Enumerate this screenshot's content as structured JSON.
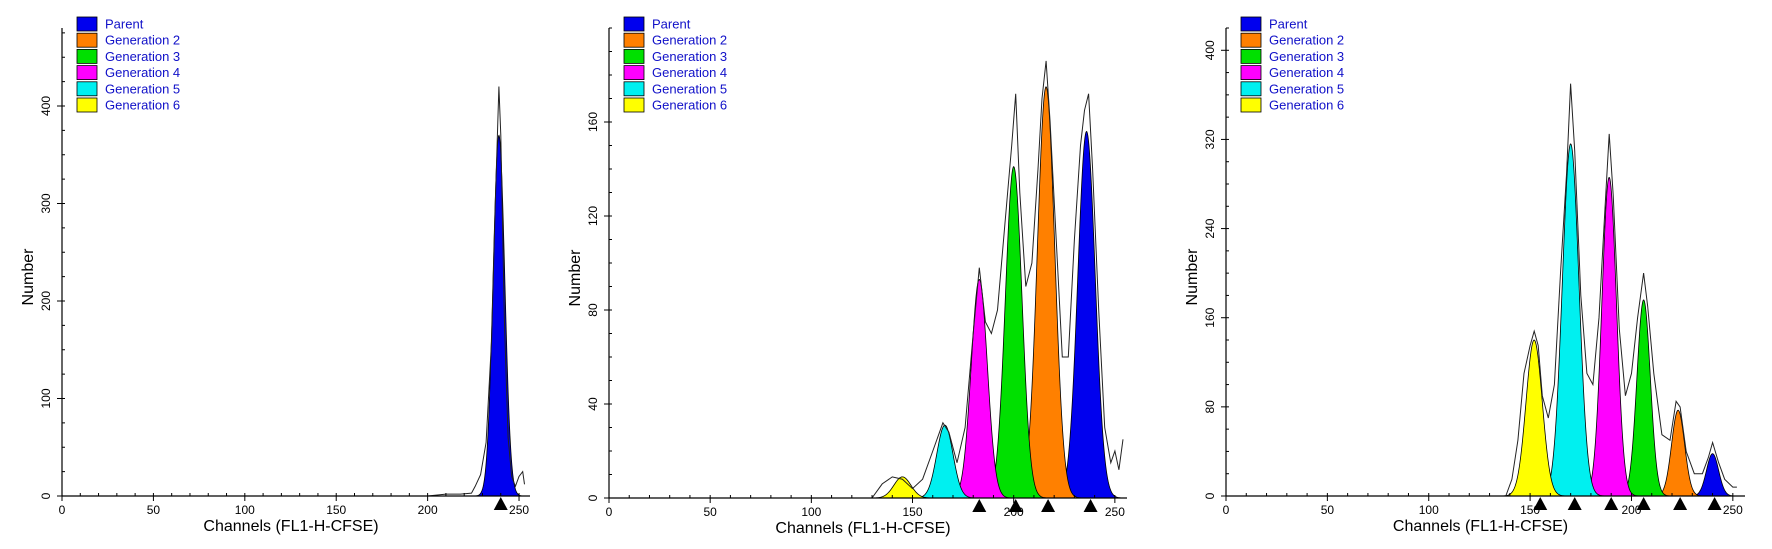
{
  "chart_data": [
    {
      "type": "area",
      "xlabel": "Channels (FL1-H-CFSE)",
      "ylabel": "Number",
      "xlim": [
        0,
        256
      ],
      "ylim": [
        0,
        480
      ],
      "xticks": [
        0,
        50,
        100,
        150,
        200,
        250
      ],
      "yticks": [
        0,
        100,
        200,
        300,
        400
      ],
      "legend": [
        "Parent",
        "Generation 2",
        "Generation 3",
        "Generation 4",
        "Generation 5",
        "Generation 6"
      ],
      "legend_position": "top-left",
      "series": [
        {
          "name": "Parent",
          "color": "#0000ee",
          "peak_x": 239,
          "peak_y": 370,
          "sigma": 3.2
        }
      ],
      "markers": [
        240
      ],
      "raw_trace": [
        [
          200,
          0
        ],
        [
          210,
          2
        ],
        [
          218,
          2
        ],
        [
          224,
          3
        ],
        [
          226,
          10
        ],
        [
          229,
          22
        ],
        [
          232,
          55
        ],
        [
          235,
          160
        ],
        [
          237,
          300
        ],
        [
          239,
          420
        ],
        [
          240,
          370
        ],
        [
          242,
          180
        ],
        [
          244,
          60
        ],
        [
          246,
          20
        ],
        [
          248,
          10
        ],
        [
          250,
          20
        ],
        [
          252,
          25
        ],
        [
          253,
          12
        ]
      ]
    },
    {
      "type": "area",
      "xlabel": "Channels (FL1-H-CFSE)",
      "ylabel": "Number",
      "xlim": [
        0,
        256
      ],
      "ylim": [
        0,
        200
      ],
      "xticks": [
        0,
        50,
        100,
        150,
        200,
        250
      ],
      "yticks": [
        0,
        40,
        80,
        120,
        160
      ],
      "legend": [
        "Parent",
        "Generation 2",
        "Generation 3",
        "Generation 4",
        "Generation 5",
        "Generation 6"
      ],
      "legend_position": "top-left",
      "series": [
        {
          "name": "Parent",
          "color": "#0000ee",
          "peak_x": 236,
          "peak_y": 156,
          "sigma": 4.3
        },
        {
          "name": "Generation 2",
          "color": "#ff8000",
          "peak_x": 216,
          "peak_y": 175,
          "sigma": 4.3
        },
        {
          "name": "Generation 3",
          "color": "#00e000",
          "peak_x": 200,
          "peak_y": 141,
          "sigma": 4.1
        },
        {
          "name": "Generation 4",
          "color": "#ff00ff",
          "peak_x": 183,
          "peak_y": 93,
          "sigma": 4.0
        },
        {
          "name": "Generation 5",
          "color": "#00f0f0",
          "peak_x": 166,
          "peak_y": 31,
          "sigma": 4.0
        },
        {
          "name": "Generation 6",
          "color": "#ffff00",
          "peak_x": 145,
          "peak_y": 9,
          "sigma": 4.2
        }
      ],
      "markers": [
        183,
        201,
        217,
        238
      ],
      "raw_trace": [
        [
          130,
          0
        ],
        [
          135,
          6
        ],
        [
          140,
          9
        ],
        [
          145,
          8
        ],
        [
          150,
          4
        ],
        [
          155,
          8
        ],
        [
          160,
          20
        ],
        [
          165,
          32
        ],
        [
          168,
          28
        ],
        [
          172,
          15
        ],
        [
          176,
          30
        ],
        [
          180,
          70
        ],
        [
          183,
          98
        ],
        [
          186,
          75
        ],
        [
          189,
          70
        ],
        [
          192,
          80
        ],
        [
          196,
          120
        ],
        [
          199,
          150
        ],
        [
          201,
          172
        ],
        [
          203,
          130
        ],
        [
          206,
          90
        ],
        [
          209,
          100
        ],
        [
          212,
          140
        ],
        [
          214,
          170
        ],
        [
          216,
          186
        ],
        [
          218,
          160
        ],
        [
          221,
          110
        ],
        [
          224,
          60
        ],
        [
          227,
          60
        ],
        [
          230,
          110
        ],
        [
          233,
          150
        ],
        [
          235,
          165
        ],
        [
          237,
          172
        ],
        [
          239,
          140
        ],
        [
          242,
          80
        ],
        [
          245,
          30
        ],
        [
          248,
          15
        ],
        [
          250,
          20
        ],
        [
          252,
          12
        ],
        [
          254,
          25
        ]
      ]
    },
    {
      "type": "area",
      "xlabel": "Channels (FL1-H-CFSE)",
      "ylabel": "Number",
      "xlim": [
        0,
        256
      ],
      "ylim": [
        0,
        420
      ],
      "xticks": [
        0,
        50,
        100,
        150,
        200,
        250
      ],
      "yticks": [
        0,
        80,
        160,
        240,
        320,
        400
      ],
      "legend": [
        "Parent",
        "Generation 2",
        "Generation 3",
        "Generation 4",
        "Generation 5",
        "Generation 6"
      ],
      "legend_position": "top-left",
      "series": [
        {
          "name": "Parent",
          "color": "#0000ee",
          "peak_x": 240,
          "peak_y": 38,
          "sigma": 3.0
        },
        {
          "name": "Generation 2",
          "color": "#ff8000",
          "peak_x": 223,
          "peak_y": 77,
          "sigma": 3.2
        },
        {
          "name": "Generation 3",
          "color": "#00e000",
          "peak_x": 206,
          "peak_y": 176,
          "sigma": 3.3
        },
        {
          "name": "Generation 4",
          "color": "#ff00ff",
          "peak_x": 189,
          "peak_y": 286,
          "sigma": 3.6
        },
        {
          "name": "Generation 5",
          "color": "#00f0f0",
          "peak_x": 170,
          "peak_y": 316,
          "sigma": 4.1
        },
        {
          "name": "Generation 6",
          "color": "#ffff00",
          "peak_x": 152,
          "peak_y": 140,
          "sigma": 4.0
        }
      ],
      "markers": [
        155,
        172,
        190,
        206,
        224,
        241
      ],
      "raw_trace": [
        [
          138,
          0
        ],
        [
          141,
          15
        ],
        [
          144,
          50
        ],
        [
          147,
          110
        ],
        [
          150,
          135
        ],
        [
          152,
          148
        ],
        [
          154,
          135
        ],
        [
          156,
          90
        ],
        [
          159,
          70
        ],
        [
          162,
          100
        ],
        [
          165,
          200
        ],
        [
          168,
          290
        ],
        [
          170,
          370
        ],
        [
          172,
          310
        ],
        [
          175,
          180
        ],
        [
          178,
          110
        ],
        [
          181,
          100
        ],
        [
          184,
          160
        ],
        [
          187,
          260
        ],
        [
          189,
          325
        ],
        [
          191,
          270
        ],
        [
          194,
          150
        ],
        [
          197,
          90
        ],
        [
          200,
          110
        ],
        [
          203,
          160
        ],
        [
          206,
          200
        ],
        [
          208,
          170
        ],
        [
          211,
          110
        ],
        [
          215,
          55
        ],
        [
          219,
          50
        ],
        [
          222,
          85
        ],
        [
          224,
          80
        ],
        [
          227,
          40
        ],
        [
          231,
          20
        ],
        [
          235,
          20
        ],
        [
          238,
          35
        ],
        [
          240,
          48
        ],
        [
          243,
          30
        ],
        [
          246,
          15
        ],
        [
          250,
          8
        ],
        [
          252,
          8
        ]
      ]
    }
  ]
}
